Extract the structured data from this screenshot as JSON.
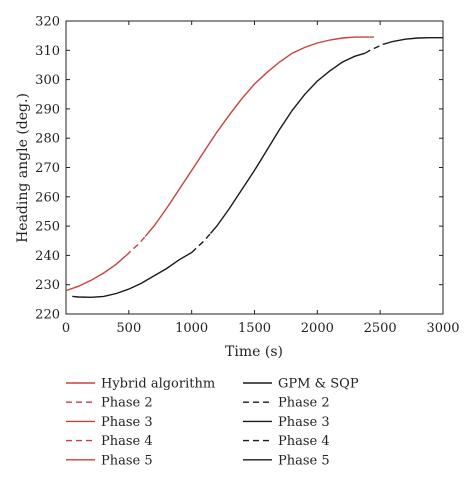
{
  "chart_data": {
    "type": "line",
    "xlabel": "Time (s)",
    "ylabel": "Heading angle (deg.)",
    "xlim": [
      0,
      3000
    ],
    "ylim": [
      220,
      320
    ],
    "xticks": [
      "0",
      "500",
      "1000",
      "1500",
      "2000",
      "2500",
      "3000"
    ],
    "yticks": [
      "220",
      "230",
      "240",
      "250",
      "260",
      "270",
      "280",
      "290",
      "300",
      "310",
      "320"
    ],
    "grid": false,
    "legend_position": "bottom",
    "colors": {
      "hybrid": "#c8413c",
      "gpm": "#1a1a1a"
    },
    "series": [
      {
        "name": "Hybrid algorithm",
        "group": "hybrid",
        "dash": "solid",
        "points": [
          [
            0,
            228
          ],
          [
            100,
            229.5
          ],
          [
            200,
            231.5
          ],
          [
            300,
            234
          ],
          [
            400,
            237
          ],
          [
            480,
            240
          ]
        ]
      },
      {
        "name": "Phase 2",
        "group": "hybrid",
        "dash": "dashed",
        "points": [
          [
            480,
            240
          ],
          [
            530,
            242
          ],
          [
            580,
            244
          ],
          [
            630,
            246.5
          ]
        ]
      },
      {
        "name": "Phase 3",
        "group": "hybrid",
        "dash": "solid",
        "points": [
          [
            630,
            246.5
          ],
          [
            700,
            250
          ],
          [
            800,
            256
          ],
          [
            900,
            262.5
          ],
          [
            1000,
            269
          ],
          [
            1100,
            275.5
          ],
          [
            1200,
            282
          ],
          [
            1300,
            288
          ],
          [
            1400,
            293.5
          ],
          [
            1500,
            298.5
          ],
          [
            1600,
            302.5
          ],
          [
            1700,
            306
          ],
          [
            1800,
            309
          ],
          [
            1900,
            311
          ],
          [
            2000,
            312.5
          ],
          [
            2100,
            313.5
          ],
          [
            2200,
            314.2
          ],
          [
            2300,
            314.5
          ],
          [
            2370,
            314.5
          ]
        ]
      },
      {
        "name": "Phase 4",
        "group": "hybrid",
        "dash": "dashed",
        "points": [
          [
            2370,
            314.5
          ],
          [
            2400,
            314.5
          ],
          [
            2420,
            314.5
          ]
        ]
      },
      {
        "name": "Phase 5",
        "group": "hybrid",
        "dash": "solid",
        "points": [
          [
            2420,
            314.5
          ],
          [
            2450,
            314.5
          ]
        ]
      },
      {
        "name": "GPM & SQP",
        "group": "gpm",
        "dash": "solid",
        "points": [
          [
            50,
            226
          ],
          [
            100,
            225.8
          ],
          [
            200,
            225.7
          ],
          [
            300,
            226
          ],
          [
            400,
            227
          ],
          [
            500,
            228.5
          ],
          [
            600,
            230.5
          ],
          [
            700,
            233
          ],
          [
            800,
            235.5
          ],
          [
            900,
            238.5
          ],
          [
            1000,
            241
          ]
        ]
      },
      {
        "name": "Phase 2",
        "group": "gpm",
        "dash": "dashed",
        "points": [
          [
            1000,
            241
          ],
          [
            1050,
            243
          ],
          [
            1100,
            245
          ],
          [
            1150,
            247.5
          ]
        ]
      },
      {
        "name": "Phase 3",
        "group": "gpm",
        "dash": "solid",
        "points": [
          [
            1150,
            247.5
          ],
          [
            1200,
            250
          ],
          [
            1300,
            256
          ],
          [
            1400,
            262.5
          ],
          [
            1500,
            269
          ],
          [
            1600,
            276
          ],
          [
            1700,
            283
          ],
          [
            1800,
            289.5
          ],
          [
            1900,
            295
          ],
          [
            2000,
            299.5
          ],
          [
            2100,
            303
          ],
          [
            2200,
            306
          ],
          [
            2300,
            308
          ],
          [
            2380,
            309
          ]
        ]
      },
      {
        "name": "Phase 4",
        "group": "gpm",
        "dash": "dashed",
        "points": [
          [
            2380,
            309
          ],
          [
            2420,
            310
          ],
          [
            2470,
            311
          ],
          [
            2520,
            312
          ]
        ]
      },
      {
        "name": "Phase 5",
        "group": "gpm",
        "dash": "solid",
        "points": [
          [
            2520,
            312
          ],
          [
            2600,
            313
          ],
          [
            2700,
            313.8
          ],
          [
            2800,
            314.2
          ],
          [
            2900,
            314.3
          ],
          [
            3000,
            314.3
          ]
        ]
      }
    ]
  }
}
